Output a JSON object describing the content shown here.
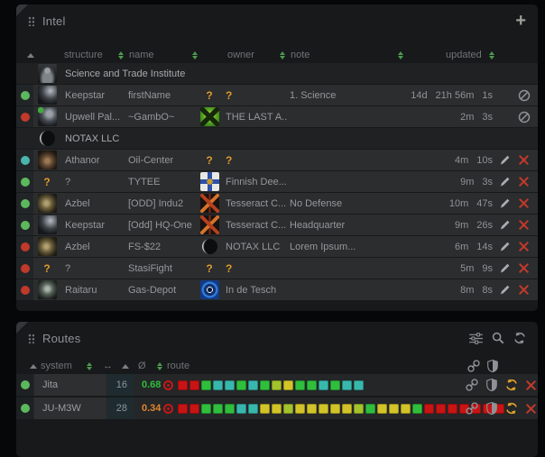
{
  "colors": {
    "accent_green": "#5cb85c",
    "question_orange": "#e09a2d",
    "delete_red": "#c0392b",
    "refresh_orange": "#e2a32b",
    "status": {
      "green": "#5cb85c",
      "red": "#c0392b",
      "teal": "#4ab5ac"
    },
    "sec_palette": {
      "red": "#c81414",
      "green": "#2fbf3c",
      "teal": "#38b8ad",
      "yellow": "#d2c428",
      "chartreuse": "#a4c22c"
    }
  },
  "intel": {
    "title": "Intel",
    "add_button_label": "+",
    "header": {
      "structure": "structure",
      "name": "name",
      "owner": "owner",
      "note": "note",
      "updated": "updated"
    },
    "rows": [
      {
        "type": "group",
        "icon": "sti",
        "label": "Science and Trade Institute"
      },
      {
        "type": "entry",
        "status": "green",
        "structure_icon": "keepstar",
        "structure": "Keepstar",
        "name": "firstName",
        "owner_icon": "?",
        "owner": "?",
        "note": "1. Science",
        "updated": [
          "14d",
          "21h 56m",
          "1s"
        ],
        "actions": [
          "ban"
        ]
      },
      {
        "type": "entry",
        "status": "red",
        "structure_icon": "upwell",
        "structure": "Upwell Pal...",
        "name": "~GambO~",
        "owner_icon": "gambo",
        "owner": "THE LAST A...",
        "note": "",
        "updated": [
          "2m",
          "3s"
        ],
        "actions": [
          "ban"
        ]
      },
      {
        "type": "group",
        "icon": "crescent",
        "label": "NOTAX LLC"
      },
      {
        "type": "entry",
        "status": "teal",
        "structure_icon": "athanor",
        "structure": "Athanor",
        "name": "Oil-Center",
        "owner_icon": "?",
        "owner": "?",
        "note": "",
        "updated": [
          "4m",
          "10s"
        ],
        "actions": [
          "edit",
          "delete"
        ]
      },
      {
        "type": "entry",
        "status": "green",
        "structure_icon": "?",
        "structure": "?",
        "name": "TYTEE",
        "owner_icon": "finnish",
        "owner": "Finnish Dee...",
        "note": "",
        "updated": [
          "9m",
          "3s"
        ],
        "actions": [
          "edit",
          "delete"
        ]
      },
      {
        "type": "entry",
        "status": "green",
        "structure_icon": "azbel",
        "structure": "Azbel",
        "name": "[ODD] Indu2",
        "owner_icon": "tesseract",
        "owner": "Tesseract C...",
        "note": "No Defense",
        "updated": [
          "10m",
          "47s"
        ],
        "actions": [
          "edit",
          "delete"
        ]
      },
      {
        "type": "entry",
        "status": "green",
        "structure_icon": "keepstar",
        "structure": "Keepstar",
        "name": "[Odd] HQ-One",
        "owner_icon": "tesseract",
        "owner": "Tesseract C...",
        "note": "Headquarter",
        "updated": [
          "9m",
          "26s"
        ],
        "actions": [
          "edit",
          "delete"
        ]
      },
      {
        "type": "entry",
        "status": "red",
        "structure_icon": "azbel",
        "structure": "Azbel",
        "name": "FS-$22",
        "owner_icon": "crescent",
        "owner": "NOTAX LLC",
        "note": "Lorem Ipsum...",
        "updated": [
          "6m",
          "14s"
        ],
        "actions": [
          "edit",
          "delete"
        ]
      },
      {
        "type": "entry",
        "status": "red",
        "structure_icon": "?",
        "structure": "?",
        "name": "StasiFight",
        "owner_icon": "?",
        "owner": "?",
        "note": "",
        "updated": [
          "5m",
          "9s"
        ],
        "actions": [
          "edit",
          "delete"
        ]
      },
      {
        "type": "entry",
        "status": "red",
        "structure_icon": "raitaru",
        "structure": "Raitaru",
        "name": "Gas-Depot",
        "owner_icon": "indetesch",
        "owner": "In de Tesch",
        "note": "",
        "updated": [
          "8m",
          "8s"
        ],
        "actions": [
          "edit",
          "delete"
        ]
      }
    ],
    "icons": [
      "drag-handle",
      "add",
      "pencil-edit",
      "delete-x",
      "ban"
    ]
  },
  "routes": {
    "title": "Routes",
    "header": {
      "system": "system",
      "jumps": "↔",
      "avg": "Ø",
      "route": "route"
    },
    "header_icons": [
      "settings-sliders",
      "search",
      "refresh"
    ],
    "header_column_icons": [
      "link",
      "shield"
    ],
    "rows": [
      {
        "status": "green",
        "system": "Jita",
        "jumps": "16",
        "avg": "0.68",
        "avg_color": "#2fbf3c",
        "route_squares": [
          "red",
          "red",
          "green",
          "teal",
          "teal",
          "green",
          "teal",
          "green",
          "chartreuse",
          "yellow",
          "green",
          "green",
          "teal",
          "green",
          "teal",
          "teal"
        ],
        "actions": [
          "link",
          "shield",
          "refresh",
          "delete"
        ]
      },
      {
        "status": "green",
        "system": "JU-M3W",
        "jumps": "28",
        "avg": "0.34",
        "avg_color": "#e0872e",
        "route_squares": [
          "red",
          "red",
          "green",
          "green",
          "green",
          "teal",
          "teal",
          "yellow",
          "yellow",
          "chartreuse",
          "yellow",
          "yellow",
          "yellow",
          "yellow",
          "yellow",
          "chartreuse",
          "green",
          "yellow",
          "yellow",
          "yellow",
          "green",
          "red",
          "red",
          "red",
          "red",
          "red",
          "red",
          "red"
        ],
        "actions": [
          "link",
          "shield",
          "refresh",
          "delete"
        ]
      }
    ]
  }
}
